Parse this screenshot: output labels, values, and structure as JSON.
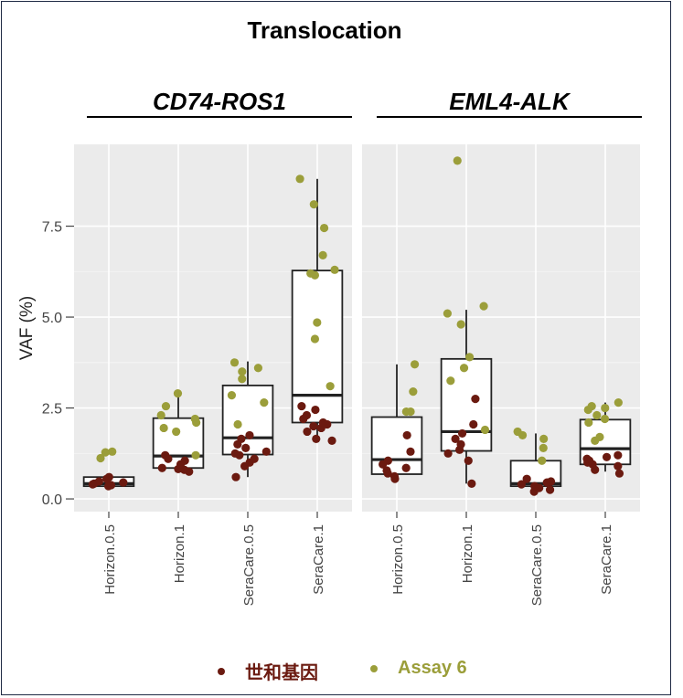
{
  "chart_data": {
    "type": "box",
    "title": "Translocation",
    "ylabel": "VAF (%)",
    "yticks": [
      "0.0",
      "2.5",
      "5.0",
      "7.5"
    ],
    "ylim": [
      -0.35,
      9.75
    ],
    "categories": [
      "Horizon.0.5",
      "Horizon.1",
      "SeraCare.0.5",
      "SeraCare.1"
    ],
    "legend": [
      {
        "label": "世和基因",
        "color": "#6b1a10"
      },
      {
        "label": "Assay 6",
        "color": "#9b9e3a"
      }
    ],
    "panels": [
      {
        "title": "CD74-ROS1",
        "boxes": [
          {
            "category": "Horizon.0.5",
            "q1": 0.35,
            "median": 0.42,
            "q3": 0.6,
            "min": 0.33,
            "max": 0.65
          },
          {
            "category": "Horizon.1",
            "q1": 0.85,
            "median": 1.18,
            "q3": 2.22,
            "min": 0.75,
            "max": 2.88
          },
          {
            "category": "SeraCare.0.5",
            "q1": 1.22,
            "median": 1.68,
            "q3": 3.12,
            "min": 0.6,
            "max": 3.78
          },
          {
            "category": "SeraCare.1",
            "q1": 2.1,
            "median": 2.85,
            "q3": 6.28,
            "min": 1.55,
            "max": 8.8
          }
        ],
        "points": [
          {
            "category": "Horizon.0.5",
            "series": 0,
            "values": [
              0.35,
              0.38,
              0.42,
              0.48,
              0.55,
              0.6,
              0.4,
              0.45
            ]
          },
          {
            "category": "Horizon.0.5",
            "series": 1,
            "values": [
              1.3,
              1.28,
              1.12
            ]
          },
          {
            "category": "Horizon.1",
            "series": 0,
            "values": [
              0.75,
              0.8,
              0.85,
              0.82,
              1.1,
              1.05,
              1.2,
              0.95
            ]
          },
          {
            "category": "Horizon.1",
            "series": 1,
            "values": [
              2.9,
              2.55,
              2.3,
              2.2,
              2.1,
              1.95,
              1.85,
              1.2
            ]
          },
          {
            "category": "SeraCare.0.5",
            "series": 0,
            "values": [
              0.6,
              0.9,
              1.0,
              1.1,
              1.2,
              1.25,
              1.3,
              1.4,
              1.5,
              1.75,
              1.65
            ]
          },
          {
            "category": "SeraCare.0.5",
            "series": 1,
            "values": [
              3.75,
              3.6,
              3.5,
              3.3,
              2.85,
              2.65,
              2.05
            ]
          },
          {
            "category": "SeraCare.1",
            "series": 0,
            "values": [
              1.6,
              1.65,
              1.85,
              1.95,
              2.0,
              2.05,
              2.1,
              2.2,
              2.3,
              2.45,
              2.55
            ]
          },
          {
            "category": "SeraCare.1",
            "series": 1,
            "values": [
              8.8,
              8.1,
              7.45,
              6.7,
              6.3,
              6.2,
              6.15,
              4.85,
              4.4,
              3.1
            ]
          }
        ]
      },
      {
        "title": "EML4-ALK",
        "boxes": [
          {
            "category": "Horizon.0.5",
            "q1": 0.68,
            "median": 1.08,
            "q3": 2.25,
            "min": 0.55,
            "max": 3.7
          },
          {
            "category": "Horizon.1",
            "q1": 1.32,
            "median": 1.85,
            "q3": 3.85,
            "min": 0.42,
            "max": 5.2
          },
          {
            "category": "SeraCare.0.5",
            "q1": 0.35,
            "median": 0.42,
            "q3": 1.05,
            "min": 0.28,
            "max": 1.8
          },
          {
            "category": "SeraCare.1",
            "q1": 0.95,
            "median": 1.38,
            "q3": 2.18,
            "min": 0.75,
            "max": 2.65
          }
        ],
        "points": [
          {
            "category": "Horizon.0.5",
            "series": 0,
            "values": [
              0.55,
              0.62,
              0.7,
              0.78,
              0.85,
              0.95,
              1.05,
              1.75,
              1.3
            ]
          },
          {
            "category": "Horizon.0.5",
            "series": 1,
            "values": [
              3.7,
              2.95,
              2.4,
              2.4
            ]
          },
          {
            "category": "Horizon.1",
            "series": 0,
            "values": [
              0.42,
              1.05,
              1.25,
              1.35,
              1.5,
              1.65,
              1.8,
              2.05,
              2.75
            ]
          },
          {
            "category": "Horizon.1",
            "series": 1,
            "values": [
              9.3,
              5.3,
              5.1,
              4.8,
              3.9,
              3.6,
              3.25,
              1.9
            ]
          },
          {
            "category": "SeraCare.0.5",
            "series": 0,
            "values": [
              0.2,
              0.25,
              0.3,
              0.35,
              0.4,
              0.45,
              0.48,
              0.55
            ]
          },
          {
            "category": "SeraCare.0.5",
            "series": 1,
            "values": [
              1.85,
              1.75,
              1.65,
              1.4,
              1.05
            ]
          },
          {
            "category": "SeraCare.1",
            "series": 0,
            "values": [
              0.7,
              0.8,
              0.9,
              0.95,
              1.0,
              1.05,
              1.1,
              1.15,
              1.2
            ]
          },
          {
            "category": "SeraCare.1",
            "series": 1,
            "values": [
              2.65,
              2.55,
              2.5,
              2.45,
              2.3,
              2.2,
              2.1,
              1.7,
              1.6
            ]
          }
        ]
      }
    ]
  }
}
